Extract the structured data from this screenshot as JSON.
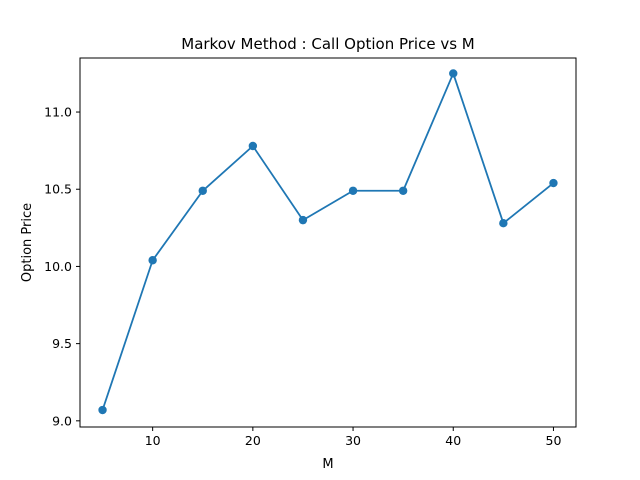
{
  "chart_data": {
    "type": "line",
    "title": "Markov Method : Call Option Price vs M",
    "xlabel": "M",
    "ylabel": "Option Price",
    "xlim": [
      2.75,
      52.25
    ],
    "ylim": [
      8.96,
      11.35
    ],
    "xticks": [
      10,
      20,
      30,
      40,
      50
    ],
    "xtick_labels": [
      "10",
      "20",
      "30",
      "40",
      "50"
    ],
    "yticks": [
      9.0,
      9.5,
      10.0,
      10.5,
      11.0
    ],
    "ytick_labels": [
      "9.0",
      "9.5",
      "10.0",
      "10.5",
      "11.0"
    ],
    "grid": false,
    "marker": "circle",
    "color": "#1f77b4",
    "series": [
      {
        "x": [
          5,
          10,
          15,
          20,
          25,
          30,
          35,
          40,
          45,
          50
        ],
        "y": [
          9.07,
          10.04,
          10.49,
          10.78,
          10.3,
          10.49,
          10.49,
          11.25,
          10.28,
          10.54
        ]
      }
    ]
  }
}
